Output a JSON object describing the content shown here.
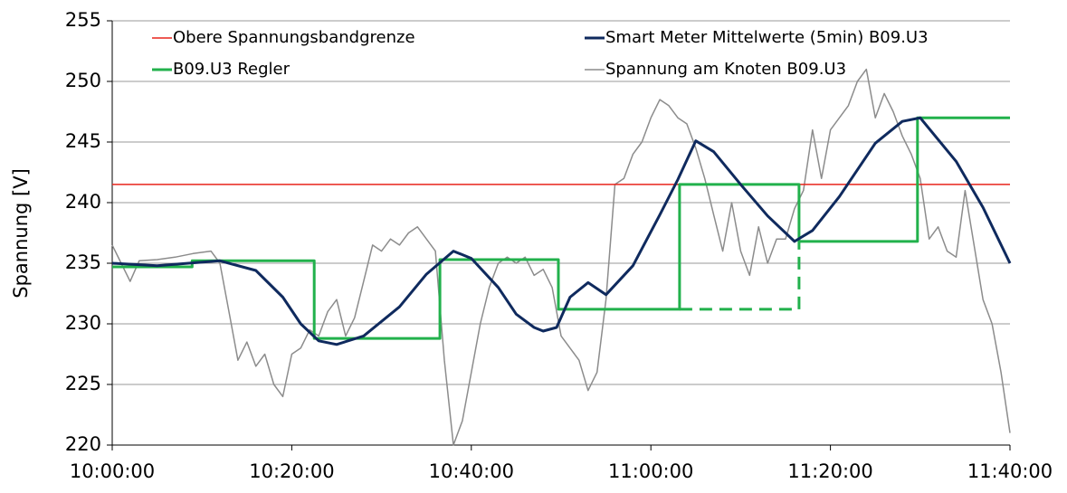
{
  "chart_data": {
    "type": "line",
    "ylabel": "Spannung [V]",
    "xlim": [
      "10:00:00",
      "11:40:00"
    ],
    "xticks": [
      "10:00:00",
      "10:20:00",
      "10:40:00",
      "11:00:00",
      "11:20:00",
      "11:40:00"
    ],
    "ylim": [
      220,
      255
    ],
    "yticks": [
      220,
      225,
      230,
      235,
      240,
      245,
      250,
      255
    ],
    "grid": true,
    "legend": "top",
    "series": [
      {
        "name": "Obere Spannungsbandgrenze",
        "color": "#e8241c",
        "width": 1.5,
        "x": [
          "10:00:00",
          "11:40:00"
        ],
        "values": [
          241.5,
          241.5
        ]
      },
      {
        "name": "Smart Meter Mittelwerte (5min) B09.U3",
        "color": "#0f2a5e",
        "width": 3,
        "x": [
          "10:00:00",
          "10:05:00",
          "10:12:00",
          "10:16:00",
          "10:19:00",
          "10:21:00",
          "10:23:00",
          "10:25:00",
          "10:28:00",
          "10:32:00",
          "10:35:00",
          "10:38:00",
          "10:40:00",
          "10:43:00",
          "10:45:00",
          "10:47:00",
          "10:48:00",
          "10:49:30",
          "10:51:00",
          "10:53:00",
          "10:55:00",
          "10:58:00",
          "11:01:00",
          "11:03:00",
          "11:05:00",
          "11:07:00",
          "11:10:00",
          "11:13:00",
          "11:16:00",
          "11:18:00",
          "11:21:00",
          "11:25:00",
          "11:28:00",
          "11:30:00",
          "11:34:00",
          "11:37:00",
          "11:40:00"
        ],
        "values": [
          235.0,
          234.8,
          235.2,
          234.4,
          232.2,
          230.0,
          228.6,
          228.3,
          229.0,
          231.4,
          234.1,
          236.0,
          235.4,
          233.0,
          230.8,
          229.7,
          229.4,
          229.7,
          232.2,
          233.4,
          232.4,
          234.8,
          239.0,
          241.9,
          245.1,
          244.2,
          241.5,
          238.9,
          236.8,
          237.7,
          240.5,
          244.9,
          246.7,
          247.0,
          243.4,
          239.6,
          235.0
        ]
      },
      {
        "name": "B09.U3 Regler",
        "color": "#22b14c",
        "width": 3,
        "x": [
          "10:00:00",
          "10:08:54",
          "10:08:54",
          "10:22:30",
          "10:22:30",
          "10:36:30",
          "10:36:30",
          "10:49:42",
          "10:49:42",
          "11:03:12",
          "11:03:12",
          "11:16:30",
          "11:16:30",
          "11:29:42",
          "11:29:42",
          "11:40:00"
        ],
        "values": [
          234.7,
          234.7,
          235.2,
          235.2,
          228.8,
          228.8,
          235.3,
          235.3,
          231.2,
          231.2,
          241.5,
          241.5,
          236.8,
          236.8,
          247.0,
          247.0
        ]
      },
      {
        "name": "Spannung am Knoten B09.U3",
        "color": "#8c8c8c",
        "width": 1.5,
        "x": [
          "10:00:00",
          "10:01:00",
          "10:02:00",
          "10:03:00",
          "10:05:00",
          "10:07:00",
          "10:09:00",
          "10:11:00",
          "10:12:00",
          "10:13:00",
          "10:14:00",
          "10:15:00",
          "10:16:00",
          "10:17:00",
          "10:18:00",
          "10:19:00",
          "10:20:00",
          "10:21:00",
          "10:22:00",
          "10:23:00",
          "10:24:00",
          "10:25:00",
          "10:26:00",
          "10:27:00",
          "10:28:00",
          "10:29:00",
          "10:30:00",
          "10:31:00",
          "10:32:00",
          "10:33:00",
          "10:34:00",
          "10:35:00",
          "10:36:00",
          "10:37:00",
          "10:38:00",
          "10:39:00",
          "10:40:00",
          "10:41:00",
          "10:42:00",
          "10:43:00",
          "10:44:00",
          "10:45:00",
          "10:46:00",
          "10:47:00",
          "10:48:00",
          "10:49:00",
          "10:50:00",
          "10:51:00",
          "10:52:00",
          "10:53:00",
          "10:54:00",
          "10:55:00",
          "10:56:00",
          "10:57:00",
          "10:58:00",
          "10:59:00",
          "11:00:00",
          "11:01:00",
          "11:02:00",
          "11:03:00",
          "11:04:00",
          "11:05:00",
          "11:06:00",
          "11:07:00",
          "11:08:00",
          "11:09:00",
          "11:10:00",
          "11:11:00",
          "11:12:00",
          "11:13:00",
          "11:14:00",
          "11:15:00",
          "11:16:00",
          "11:17:00",
          "11:18:00",
          "11:19:00",
          "11:20:00",
          "11:21:00",
          "11:22:00",
          "11:23:00",
          "11:24:00",
          "11:25:00",
          "11:26:00",
          "11:27:00",
          "11:28:00",
          "11:29:00",
          "11:30:00",
          "11:31:00",
          "11:32:00",
          "11:33:00",
          "11:34:00",
          "11:35:00",
          "11:36:00",
          "11:37:00",
          "11:38:00",
          "11:39:00",
          "11:40:00"
        ],
        "values": [
          236.5,
          235.0,
          233.5,
          235.2,
          235.3,
          235.5,
          235.8,
          236.0,
          235.0,
          231.0,
          227.0,
          228.5,
          226.5,
          227.5,
          225.0,
          224.0,
          227.5,
          228.0,
          229.5,
          229.0,
          231.0,
          232.0,
          229.0,
          230.5,
          233.5,
          236.5,
          236.0,
          237.0,
          236.5,
          237.5,
          238.0,
          237.0,
          236.0,
          227.0,
          220.0,
          222.0,
          226.0,
          230.0,
          233.0,
          235.0,
          235.5,
          235.0,
          235.5,
          234.0,
          234.5,
          233.0,
          229.0,
          228.0,
          227.0,
          224.5,
          226.0,
          232.0,
          241.5,
          242.0,
          244.0,
          245.0,
          247.0,
          248.5,
          248.0,
          247.0,
          246.5,
          244.5,
          242.0,
          239.0,
          236.0,
          240.0,
          236.0,
          234.0,
          238.0,
          235.0,
          237.0,
          237.0,
          239.5,
          241.0,
          246.0,
          242.0,
          246.0,
          247.0,
          248.0,
          250.0,
          251.0,
          247.0,
          249.0,
          247.5,
          245.5,
          244.0,
          242.0,
          237.0,
          238.0,
          236.0,
          235.5,
          241.0,
          236.5,
          232.0,
          230.0,
          226.0,
          221.0
        ]
      },
      {
        "color": "#22b14c",
        "width": 3,
        "linestyle": "dashed",
        "x": [
          "11:03:12",
          "11:16:30",
          "11:16:30"
        ],
        "values": [
          231.2,
          231.2,
          236.8
        ]
      }
    ]
  }
}
